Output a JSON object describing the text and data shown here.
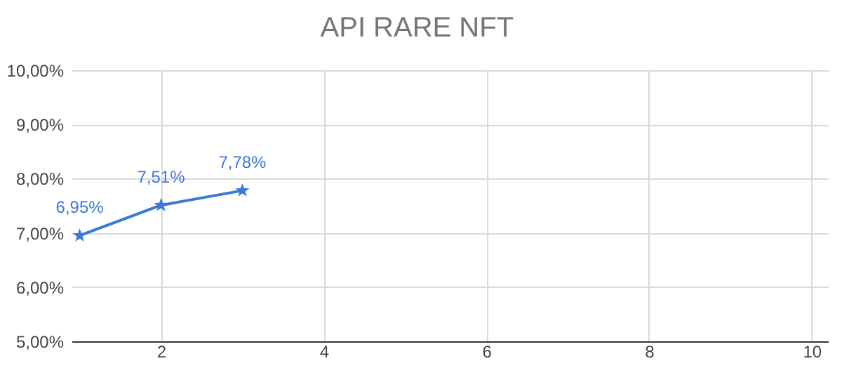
{
  "chart_data": {
    "type": "line",
    "title": "API RARE NFT",
    "x": [
      1,
      2,
      3
    ],
    "series": [
      {
        "color": "#3c78d8",
        "values": [
          6.95,
          7.51,
          7.78
        ],
        "value_labels": [
          "6,95%",
          "7,51%",
          "7,78%"
        ]
      }
    ],
    "xlim": [
      0.9,
      10.2
    ],
    "xticks": [
      2,
      4,
      6,
      8,
      10
    ],
    "ylim": [
      5,
      10
    ],
    "yticks": [
      {
        "value": 5,
        "label": "5,00%"
      },
      {
        "value": 6,
        "label": "6,00%"
      },
      {
        "value": 7,
        "label": "7,00%"
      },
      {
        "value": 8,
        "label": "8,00%"
      },
      {
        "value": 9,
        "label": "9,00%"
      },
      {
        "value": 10,
        "label": "10,00%"
      }
    ],
    "grid": true,
    "marker": "star",
    "line_style": "solid",
    "legend": false
  }
}
